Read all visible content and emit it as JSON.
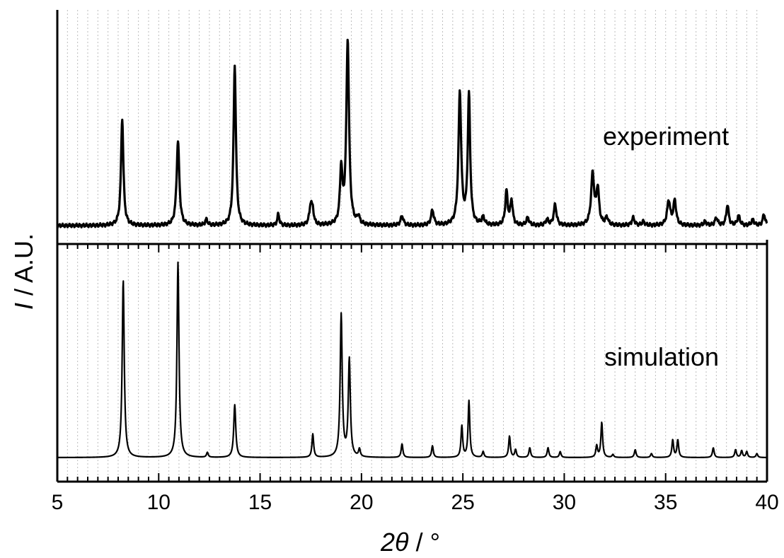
{
  "chart_data": {
    "type": "line",
    "xlabel": {
      "symbol": "2θ",
      "unit": " / °"
    },
    "ylabel": {
      "symbol": "I",
      "unit": " / A.U."
    },
    "xlim": [
      5,
      40
    ],
    "xticks": [
      5,
      10,
      15,
      20,
      25,
      30,
      35,
      40
    ],
    "xtick_labels": [
      "5",
      "10",
      "15",
      "20",
      "25",
      "30",
      "35",
      "40"
    ],
    "minor_xtick_step": 0.5,
    "grid": "vertical dotted gridlines every 0.5°",
    "layout": "two stacked panels sharing the x axis",
    "panels": [
      {
        "id": "top",
        "label": "experiment",
        "line_color": "#000000",
        "baseline": 0.02,
        "peaks": [
          {
            "x": 8.2,
            "y": 0.57,
            "w": 0.07
          },
          {
            "x": 10.95,
            "y": 0.45,
            "w": 0.08
          },
          {
            "x": 12.35,
            "y": 0.03,
            "w": 0.07
          },
          {
            "x": 13.75,
            "y": 0.85,
            "w": 0.07
          },
          {
            "x": 15.9,
            "y": 0.06,
            "w": 0.06
          },
          {
            "x": 17.5,
            "y": 0.11,
            "w": 0.08
          },
          {
            "x": 17.6,
            "y": 0.06,
            "w": 0.06
          },
          {
            "x": 19.0,
            "y": 0.29,
            "w": 0.07
          },
          {
            "x": 19.32,
            "y": 0.98,
            "w": 0.08
          },
          {
            "x": 19.85,
            "y": 0.04,
            "w": 0.07
          },
          {
            "x": 22.0,
            "y": 0.05,
            "w": 0.08
          },
          {
            "x": 23.5,
            "y": 0.08,
            "w": 0.08
          },
          {
            "x": 24.85,
            "y": 0.7,
            "w": 0.08
          },
          {
            "x": 25.3,
            "y": 0.69,
            "w": 0.07
          },
          {
            "x": 26.0,
            "y": 0.04,
            "w": 0.08
          },
          {
            "x": 27.15,
            "y": 0.18,
            "w": 0.07
          },
          {
            "x": 27.4,
            "y": 0.13,
            "w": 0.07
          },
          {
            "x": 28.2,
            "y": 0.04,
            "w": 0.08
          },
          {
            "x": 29.15,
            "y": 0.03,
            "w": 0.08
          },
          {
            "x": 29.55,
            "y": 0.11,
            "w": 0.08
          },
          {
            "x": 31.4,
            "y": 0.27,
            "w": 0.09
          },
          {
            "x": 31.65,
            "y": 0.19,
            "w": 0.08
          },
          {
            "x": 32.1,
            "y": 0.04,
            "w": 0.08
          },
          {
            "x": 33.4,
            "y": 0.04,
            "w": 0.08
          },
          {
            "x": 33.9,
            "y": 0.02,
            "w": 0.08
          },
          {
            "x": 35.15,
            "y": 0.13,
            "w": 0.09
          },
          {
            "x": 35.45,
            "y": 0.13,
            "w": 0.08
          },
          {
            "x": 36.95,
            "y": 0.02,
            "w": 0.08
          },
          {
            "x": 37.5,
            "y": 0.04,
            "w": 0.08
          },
          {
            "x": 38.05,
            "y": 0.11,
            "w": 0.07
          },
          {
            "x": 38.6,
            "y": 0.05,
            "w": 0.08
          },
          {
            "x": 39.3,
            "y": 0.03,
            "w": 0.08
          },
          {
            "x": 39.85,
            "y": 0.06,
            "w": 0.07
          }
        ]
      },
      {
        "id": "bottom",
        "label": "simulation",
        "line_color": "#000000",
        "baseline": 0.0,
        "peaks": [
          {
            "x": 8.25,
            "y": 0.91,
            "w": 0.06
          },
          {
            "x": 10.95,
            "y": 1.0,
            "w": 0.06
          },
          {
            "x": 12.4,
            "y": 0.025,
            "w": 0.05
          },
          {
            "x": 13.75,
            "y": 0.27,
            "w": 0.06
          },
          {
            "x": 17.6,
            "y": 0.12,
            "w": 0.05
          },
          {
            "x": 19.0,
            "y": 0.73,
            "w": 0.06
          },
          {
            "x": 19.4,
            "y": 0.5,
            "w": 0.06
          },
          {
            "x": 19.9,
            "y": 0.04,
            "w": 0.05
          },
          {
            "x": 22.0,
            "y": 0.07,
            "w": 0.05
          },
          {
            "x": 23.5,
            "y": 0.06,
            "w": 0.05
          },
          {
            "x": 24.95,
            "y": 0.16,
            "w": 0.05
          },
          {
            "x": 25.3,
            "y": 0.29,
            "w": 0.05
          },
          {
            "x": 26.0,
            "y": 0.03,
            "w": 0.05
          },
          {
            "x": 27.3,
            "y": 0.11,
            "w": 0.05
          },
          {
            "x": 27.6,
            "y": 0.04,
            "w": 0.05
          },
          {
            "x": 28.3,
            "y": 0.05,
            "w": 0.05
          },
          {
            "x": 29.2,
            "y": 0.05,
            "w": 0.05
          },
          {
            "x": 29.8,
            "y": 0.03,
            "w": 0.05
          },
          {
            "x": 31.6,
            "y": 0.06,
            "w": 0.05
          },
          {
            "x": 31.85,
            "y": 0.18,
            "w": 0.05
          },
          {
            "x": 32.4,
            "y": 0.015,
            "w": 0.05
          },
          {
            "x": 33.5,
            "y": 0.04,
            "w": 0.05
          },
          {
            "x": 34.3,
            "y": 0.02,
            "w": 0.05
          },
          {
            "x": 35.35,
            "y": 0.09,
            "w": 0.05
          },
          {
            "x": 35.6,
            "y": 0.09,
            "w": 0.05
          },
          {
            "x": 37.35,
            "y": 0.05,
            "w": 0.05
          },
          {
            "x": 38.45,
            "y": 0.04,
            "w": 0.05
          },
          {
            "x": 38.75,
            "y": 0.035,
            "w": 0.05
          },
          {
            "x": 39.0,
            "y": 0.03,
            "w": 0.05
          },
          {
            "x": 39.5,
            "y": 0.02,
            "w": 0.05
          }
        ]
      }
    ]
  }
}
